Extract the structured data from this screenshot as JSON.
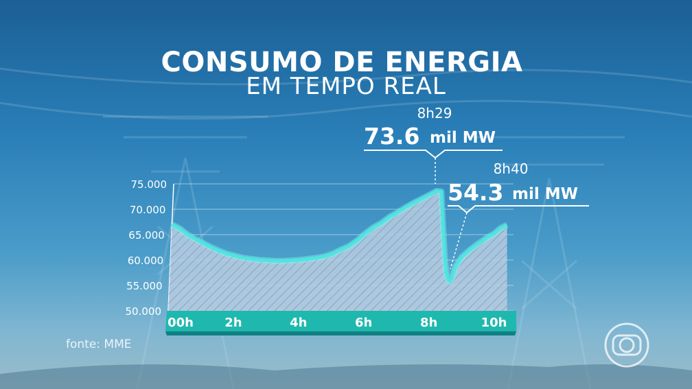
{
  "title": "CONSUMO DE ENERGIA",
  "subtitle": "EM TEMPO REAL",
  "source": "fonte: MME",
  "chart_data": {
    "type": "area",
    "x_tick_labels": [
      "00h",
      "2h",
      "4h",
      "6h",
      "8h",
      "10h"
    ],
    "x_tick_values": [
      0,
      2,
      4,
      6,
      8,
      10
    ],
    "xlim": [
      0,
      10.6
    ],
    "y_tick_labels": [
      "75.000",
      "70.000",
      "65.000",
      "60.000",
      "55.000",
      "50.000"
    ],
    "y_tick_values": [
      75000,
      70000,
      65000,
      60000,
      55000,
      50000
    ],
    "ylim": [
      50000,
      75000
    ],
    "series": [
      {
        "x": [
          0,
          0.25,
          0.5,
          0.75,
          1,
          1.25,
          1.5,
          1.75,
          2,
          2.25,
          2.5,
          2.75,
          3,
          3.25,
          3.5,
          3.75,
          4,
          4.25,
          4.5,
          4.75,
          5,
          5.25,
          5.5,
          5.75,
          6,
          6.25,
          6.5,
          6.75,
          7,
          7.25,
          7.5,
          7.75,
          8,
          8.2,
          8.35,
          8.48,
          8.55,
          8.62,
          8.7,
          8.8,
          9,
          9.25,
          9.5,
          9.75,
          10,
          10.2,
          10.4
        ],
        "y": [
          67000,
          66200,
          65000,
          64100,
          63300,
          62500,
          61800,
          61200,
          60800,
          60400,
          60200,
          60000,
          59900,
          59800,
          59800,
          59900,
          60000,
          60200,
          60400,
          60700,
          61200,
          62000,
          62700,
          63800,
          65200,
          66400,
          67300,
          68500,
          69400,
          70400,
          71300,
          72100,
          72900,
          73600,
          73500,
          60000,
          56600,
          55800,
          56300,
          58600,
          60600,
          62000,
          63200,
          64300,
          65200,
          66300,
          66900
        ]
      }
    ],
    "annotations": [
      {
        "time": "8h29",
        "value": "73.6",
        "unit": "mil MW"
      },
      {
        "time": "8h40",
        "value": "54.3",
        "unit": "mil MW"
      }
    ],
    "grid": true,
    "line_color": "#4ee5e0",
    "axis_band_color": "#1fb8ae"
  }
}
